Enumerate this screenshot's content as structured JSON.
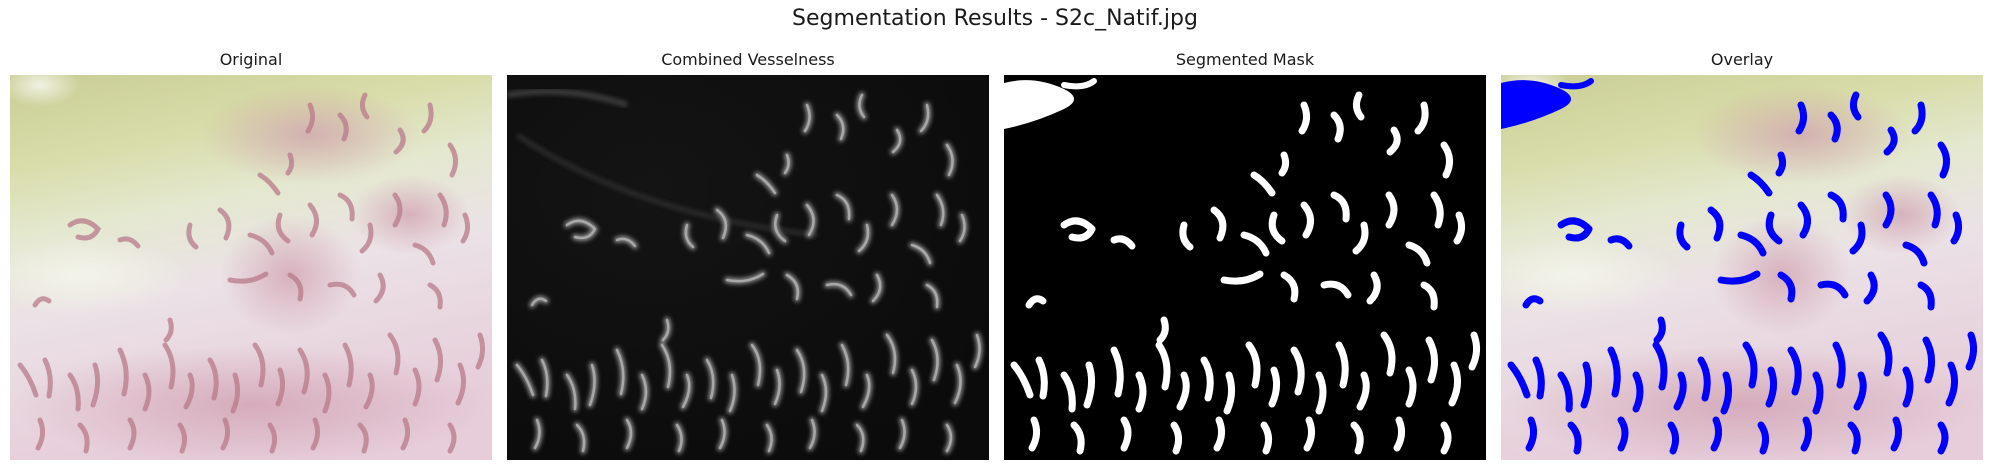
{
  "figure": {
    "title": "Segmentation Results - S2c_Natif.jpg"
  },
  "panels": [
    {
      "title": "Original"
    },
    {
      "title": "Combined Vesselness"
    },
    {
      "title": "Segmented Mask"
    },
    {
      "title": "Overlay"
    }
  ],
  "colors": {
    "vessel_tissue": "#b87a8a",
    "vesselness_dark": "#0f0f0f",
    "mask_background": "#000000",
    "mask_foreground": "#ffffff",
    "overlay_vessel": "#0000ff"
  }
}
